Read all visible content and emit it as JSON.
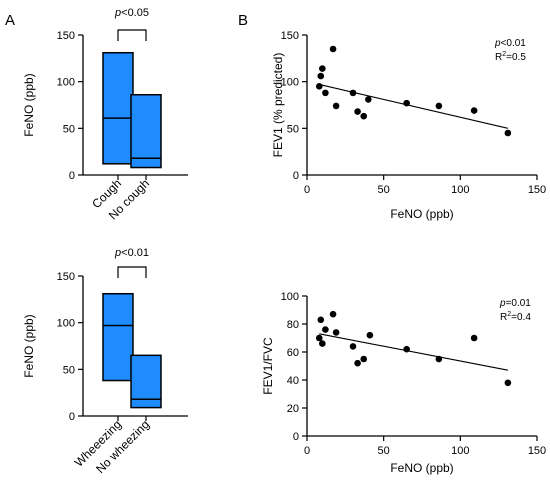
{
  "panels": [
    {
      "label": "A"
    },
    {
      "label": "B"
    }
  ],
  "chart_data": [
    {
      "type": "bar",
      "subtype": "floating-bar",
      "ylabel": "FeNO (ppb)",
      "ylim": [
        0,
        150
      ],
      "yticks": [
        "0",
        "50",
        "100",
        "150"
      ],
      "categories": [
        "Cough",
        "No cough"
      ],
      "bars": [
        {
          "category": "Cough",
          "min": 12,
          "median": 61,
          "max": 131
        },
        {
          "category": "No cough",
          "min": 8,
          "median": 18,
          "max": 86
        }
      ],
      "significance": {
        "p_prefix": "p",
        "p_text": "<0.05"
      },
      "colors": {
        "bar": "#1E8CFF"
      }
    },
    {
      "type": "bar",
      "subtype": "floating-bar",
      "ylabel": "FeNO (ppb)",
      "ylim": [
        0,
        150
      ],
      "yticks": [
        "0",
        "50",
        "100",
        "150"
      ],
      "categories": [
        "Wheeezing",
        "No wheezing"
      ],
      "bars": [
        {
          "category": "Wheeezing",
          "min": 38,
          "median": 97,
          "max": 131
        },
        {
          "category": "No wheezing",
          "min": 9,
          "median": 18,
          "max": 65
        }
      ],
      "significance": {
        "p_prefix": "p",
        "p_text": "<0.01"
      },
      "colors": {
        "bar": "#1E8CFF"
      }
    },
    {
      "type": "scatter",
      "xlabel": "FeNO (ppb)",
      "ylabel": "FEV1 (% predicted)",
      "xlim": [
        0,
        150
      ],
      "ylim": [
        0,
        150
      ],
      "xticks": [
        "0",
        "50",
        "100",
        "150"
      ],
      "yticks": [
        "0",
        "50",
        "100",
        "150"
      ],
      "points": [
        {
          "x": 8,
          "y": 95
        },
        {
          "x": 9,
          "y": 106
        },
        {
          "x": 10,
          "y": 114
        },
        {
          "x": 12,
          "y": 88
        },
        {
          "x": 17,
          "y": 135
        },
        {
          "x": 19,
          "y": 74
        },
        {
          "x": 30,
          "y": 88
        },
        {
          "x": 33,
          "y": 68
        },
        {
          "x": 37,
          "y": 63
        },
        {
          "x": 40,
          "y": 81
        },
        {
          "x": 65,
          "y": 77
        },
        {
          "x": 86,
          "y": 74
        },
        {
          "x": 109,
          "y": 69
        },
        {
          "x": 131,
          "y": 45
        }
      ],
      "trendline": {
        "x": [
          8,
          131
        ],
        "y": [
          97,
          50
        ]
      },
      "annotation": {
        "p_prefix": "p",
        "p_text": "<0.01",
        "r2_prefix": "R",
        "r2_sup": "2",
        "r2_text": "=0.5"
      }
    },
    {
      "type": "scatter",
      "xlabel": "FeNO (ppb)",
      "ylabel": "FEV1/FVC",
      "xlim": [
        0,
        150
      ],
      "ylim": [
        0,
        100
      ],
      "xticks": [
        "0",
        "50",
        "100",
        "150"
      ],
      "yticks": [
        "0",
        "20",
        "40",
        "60",
        "80",
        "100"
      ],
      "points": [
        {
          "x": 8,
          "y": 70
        },
        {
          "x": 9,
          "y": 83
        },
        {
          "x": 10,
          "y": 66
        },
        {
          "x": 12,
          "y": 76
        },
        {
          "x": 17,
          "y": 87
        },
        {
          "x": 19,
          "y": 74
        },
        {
          "x": 30,
          "y": 64
        },
        {
          "x": 33,
          "y": 52
        },
        {
          "x": 37,
          "y": 55
        },
        {
          "x": 41,
          "y": 72
        },
        {
          "x": 65,
          "y": 62
        },
        {
          "x": 86,
          "y": 55
        },
        {
          "x": 109,
          "y": 70
        },
        {
          "x": 131,
          "y": 38
        }
      ],
      "trendline": {
        "x": [
          8,
          131
        ],
        "y": [
          73,
          47
        ]
      },
      "annotation": {
        "p_prefix": "p",
        "p_text": "=0.01",
        "r2_prefix": "R",
        "r2_sup": "2",
        "r2_text": "=0.4"
      }
    }
  ]
}
